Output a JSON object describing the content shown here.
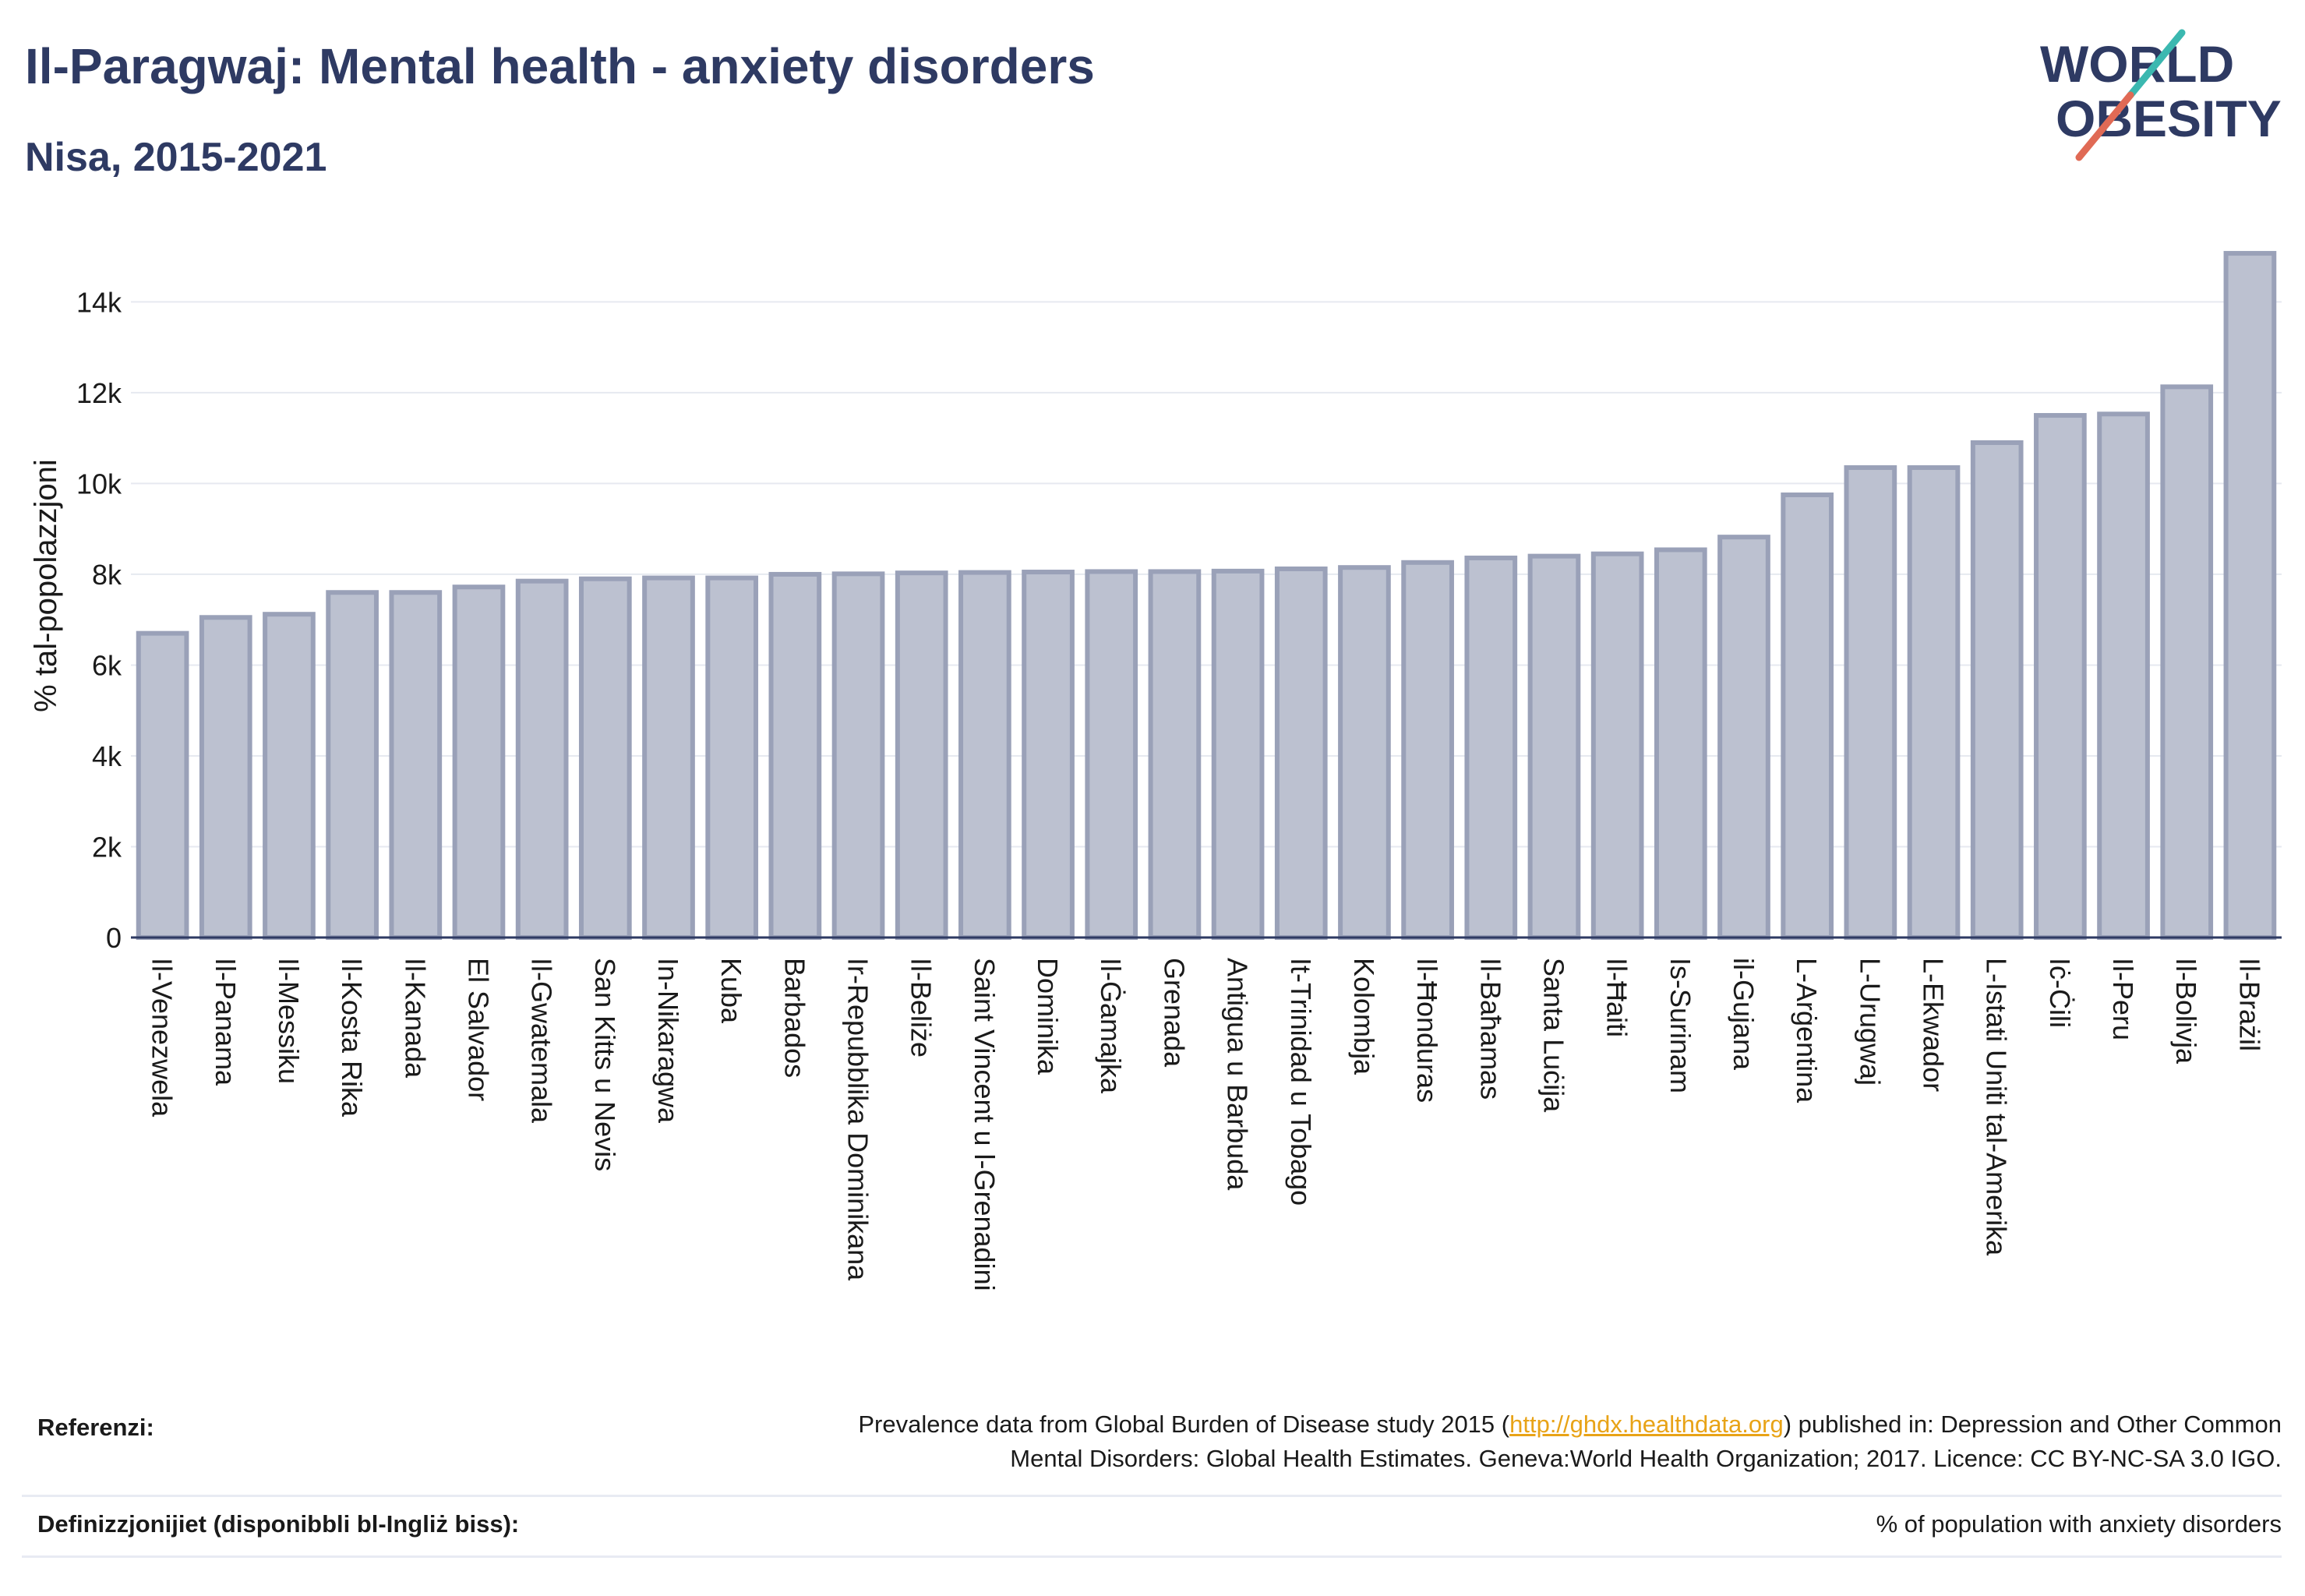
{
  "title": "Il-Paragwaj: Mental health - anxiety disorders",
  "subtitle": "Nisa, 2015-2021",
  "logo": {
    "line1": "WORLD",
    "line2": "OBESITY"
  },
  "colors": {
    "bar_fill": "#bcc1d0",
    "bar_stroke": "#9aa1b8",
    "title": "#2e3a63",
    "link": "#e8a317",
    "logo_slash_teal": "#3bb8b0",
    "logo_slash_red": "#e06a55"
  },
  "chart_data": {
    "type": "bar",
    "ylabel": "% tal-popolazzjoni",
    "ylim": [
      0,
      15500
    ],
    "yticks": [
      0,
      2000,
      4000,
      6000,
      8000,
      10000,
      12000,
      14000
    ],
    "ytick_labels": [
      "0",
      "2k",
      "4k",
      "6k",
      "8k",
      "10k",
      "12k",
      "14k"
    ],
    "grid": true,
    "categories": [
      "Il-Venezwela",
      "Il-Panama",
      "Il-Messiku",
      "Il-Kosta Rika",
      "Il-Kanada",
      "El Salvador",
      "Il-Gwatemala",
      "San Kitts u Nevis",
      "In-Nikaragwa",
      "Kuba",
      "Barbados",
      "Ir-Repubblika Dominikana",
      "Il-Beliże",
      "Saint Vincent u l-Grenadini",
      "Dominika",
      "Il-Ġamajka",
      "Grenada",
      "Antigua u Barbuda",
      "It-Trinidad u Tobago",
      "Kolombja",
      "Il-Ħonduras",
      "Il-Baħamas",
      "Santa Luċija",
      "Il-Ħaiti",
      "Is-Surinam",
      "il-Gujana",
      "L-Arġentina",
      "L-Urugwaj",
      "L-Ekwador",
      "L-Istati Uniti tal-Amerika",
      "Iċ-Ċili",
      "Il-Peru",
      "Il-Bolivja",
      "Il-Brażil"
    ],
    "values": [
      6700,
      7050,
      7120,
      7600,
      7600,
      7720,
      7850,
      7900,
      7920,
      7920,
      8000,
      8010,
      8030,
      8040,
      8050,
      8060,
      8060,
      8070,
      8120,
      8150,
      8260,
      8360,
      8400,
      8450,
      8540,
      8820,
      9750,
      10350,
      10350,
      10900,
      11500,
      11530,
      12130,
      15070
    ]
  },
  "footer": {
    "references_label": "Referenzi:",
    "references_pre": "Prevalence data from Global Burden of Disease study 2015 (",
    "references_link": "http://ghdx.healthdata.org",
    "references_post": ") published in: Depression and Other Common",
    "references_line2": "Mental Disorders: Global Health Estimates. Geneva:World Health Organization; 2017. Licence: CC BY-NC-SA 3.0 IGO.",
    "definitions_label": "Definizzjonijiet (disponibbli bl-Ingliż biss):",
    "definitions_text": "% of population with anxiety disorders"
  }
}
